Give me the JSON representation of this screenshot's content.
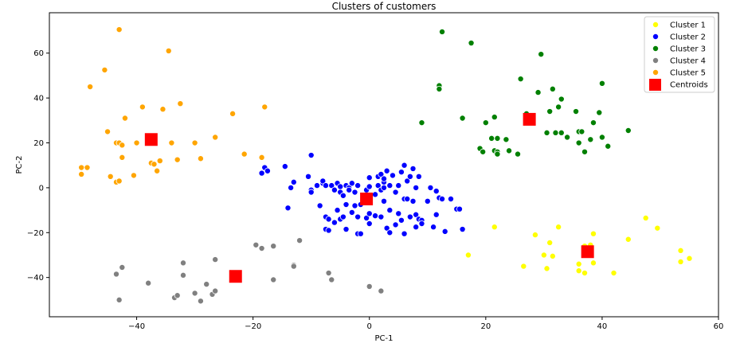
{
  "chart_data": {
    "type": "scatter",
    "title": "Clusters of customers",
    "xlabel": "PC-1",
    "ylabel": "PC-2",
    "xlim": [
      -55,
      60
    ],
    "ylim": [
      -57.5,
      78
    ],
    "x_ticks": [
      -40,
      -20,
      0,
      20,
      40,
      60
    ],
    "y_ticks": [
      -40,
      -20,
      0,
      20,
      40,
      60
    ],
    "x_tick_labels": [
      "−40",
      "−20",
      "0",
      "20",
      "40",
      "60"
    ],
    "y_tick_labels": [
      "−40",
      "−20",
      "0",
      "20",
      "40",
      "60"
    ],
    "grid": false,
    "legend_position": "top-right",
    "series": [
      {
        "name": "Cluster 1",
        "color": "#ffff00",
        "points": [
          [
            17,
            -30
          ],
          [
            21.5,
            -17.5
          ],
          [
            26.5,
            -35
          ],
          [
            28.5,
            -21
          ],
          [
            30,
            -30
          ],
          [
            30.5,
            -36
          ],
          [
            31,
            -24.5
          ],
          [
            31.5,
            -30.5
          ],
          [
            32.5,
            -17.5
          ],
          [
            36,
            -34
          ],
          [
            36,
            -37
          ],
          [
            37,
            -38
          ],
          [
            37,
            -26
          ],
          [
            38,
            -25.5
          ],
          [
            38.5,
            -20.5
          ],
          [
            38.5,
            -33.5
          ],
          [
            42,
            -38
          ],
          [
            44.5,
            -23
          ],
          [
            47.5,
            -13.5
          ],
          [
            49.5,
            -18
          ],
          [
            53.5,
            -28
          ],
          [
            53.5,
            -33
          ],
          [
            55,
            -31.5
          ]
        ]
      },
      {
        "name": "Cluster 2",
        "color": "#0000ff",
        "points": [
          [
            -18.5,
            6.5
          ],
          [
            -18,
            9
          ],
          [
            -17.5,
            7.5
          ],
          [
            -14.5,
            9.5
          ],
          [
            -14,
            -9
          ],
          [
            -13.5,
            0
          ],
          [
            -13,
            2.5
          ],
          [
            -10.5,
            5
          ],
          [
            -10,
            14.5
          ],
          [
            -10,
            -1
          ],
          [
            -10,
            -2
          ],
          [
            -9,
            1
          ],
          [
            -8.5,
            -8
          ],
          [
            -8,
            2
          ],
          [
            -8,
            3
          ],
          [
            -7.5,
            1
          ],
          [
            -7.5,
            -13
          ],
          [
            -7.5,
            -18.5
          ],
          [
            -7,
            -14
          ],
          [
            -7,
            -19
          ],
          [
            -6.5,
            1
          ],
          [
            -6,
            -1
          ],
          [
            -6,
            -15.5
          ],
          [
            -5.5,
            2
          ],
          [
            -5.5,
            -10
          ],
          [
            -5,
            0.5
          ],
          [
            -5,
            -14
          ],
          [
            -5,
            -2
          ],
          [
            -4.5,
            -3.5
          ],
          [
            -4.5,
            -13
          ],
          [
            -4,
            -18.5
          ],
          [
            -4,
            1
          ],
          [
            -4,
            -7.5
          ],
          [
            -3.5,
            0
          ],
          [
            -3.5,
            -1
          ],
          [
            -3,
            2
          ],
          [
            -3,
            -11
          ],
          [
            -2.5,
            -2
          ],
          [
            -2.5,
            -8
          ],
          [
            -2,
            1
          ],
          [
            -2,
            -13
          ],
          [
            -2,
            -20.5
          ],
          [
            -1.5,
            -20.5
          ],
          [
            -1.5,
            -7.5
          ],
          [
            -1,
            -4
          ],
          [
            -0.5,
            -13.5
          ],
          [
            -0.5,
            -1
          ],
          [
            0,
            0.5
          ],
          [
            0,
            4.5
          ],
          [
            0,
            -11.5
          ],
          [
            0,
            -16
          ],
          [
            1,
            -3
          ],
          [
            1,
            -12.5
          ],
          [
            1.5,
            1
          ],
          [
            1.5,
            5
          ],
          [
            2,
            -1
          ],
          [
            2,
            -13
          ],
          [
            2,
            6
          ],
          [
            2.5,
            2.5
          ],
          [
            2.5,
            0
          ],
          [
            2.5,
            -6
          ],
          [
            2.5,
            4
          ],
          [
            3,
            7.5
          ],
          [
            3,
            -18
          ],
          [
            3.5,
            -10
          ],
          [
            3.5,
            1
          ],
          [
            3.5,
            -20
          ],
          [
            4,
            5.5
          ],
          [
            4.5,
            -2
          ],
          [
            4.5,
            -16.5
          ],
          [
            5,
            -11.5
          ],
          [
            5,
            1
          ],
          [
            5.5,
            7
          ],
          [
            5.5,
            -14.5
          ],
          [
            6,
            -20.5
          ],
          [
            6,
            10
          ],
          [
            6,
            -5
          ],
          [
            6.5,
            3
          ],
          [
            6.5,
            -5
          ],
          [
            7,
            5
          ],
          [
            7,
            -13
          ],
          [
            7.5,
            -6
          ],
          [
            7.5,
            8.5
          ],
          [
            8,
            -17.5
          ],
          [
            8,
            0
          ],
          [
            8,
            -12
          ],
          [
            8.5,
            5
          ],
          [
            8.5,
            -14
          ],
          [
            9,
            -14.5
          ],
          [
            9,
            -16
          ],
          [
            10,
            -6
          ],
          [
            10.5,
            0
          ],
          [
            11,
            -17.5
          ],
          [
            11.5,
            -1.5
          ],
          [
            11.5,
            -12
          ],
          [
            12,
            -4.5
          ],
          [
            12.5,
            -5
          ],
          [
            13,
            -19.5
          ],
          [
            14,
            -5
          ],
          [
            15,
            -9.5
          ],
          [
            15.5,
            -9.5
          ],
          [
            16,
            -18.5
          ]
        ]
      },
      {
        "name": "Cluster 3",
        "color": "#008000",
        "points": [
          [
            9,
            29
          ],
          [
            12,
            45.5
          ],
          [
            12,
            44
          ],
          [
            12.5,
            69.5
          ],
          [
            17.5,
            64.5
          ],
          [
            16,
            31
          ],
          [
            19,
            17.5
          ],
          [
            19.5,
            16
          ],
          [
            20,
            29
          ],
          [
            21,
            22
          ],
          [
            21.5,
            16.5
          ],
          [
            21.5,
            31.5
          ],
          [
            22,
            22
          ],
          [
            22,
            16
          ],
          [
            22,
            15
          ],
          [
            23.5,
            21.5
          ],
          [
            24,
            16.5
          ],
          [
            25.5,
            15
          ],
          [
            26,
            48.5
          ],
          [
            27,
            33
          ],
          [
            29,
            42.5
          ],
          [
            29.5,
            59.5
          ],
          [
            30.5,
            24.5
          ],
          [
            31,
            34
          ],
          [
            31.5,
            44
          ],
          [
            32,
            24.5
          ],
          [
            32.5,
            36
          ],
          [
            33,
            39.5
          ],
          [
            33,
            24.5
          ],
          [
            34,
            22.5
          ],
          [
            35.5,
            34
          ],
          [
            36,
            20
          ],
          [
            36,
            25
          ],
          [
            36.5,
            25
          ],
          [
            37,
            16
          ],
          [
            38,
            21.5
          ],
          [
            38.5,
            29
          ],
          [
            39.5,
            33.5
          ],
          [
            40,
            46.5
          ],
          [
            40,
            22.5
          ],
          [
            41,
            18.5
          ],
          [
            44.5,
            25.5
          ]
        ]
      },
      {
        "name": "Cluster 4",
        "color": "#808080",
        "points": [
          [
            -43.5,
            -38.5
          ],
          [
            -43,
            -50
          ],
          [
            -42.5,
            -35.5
          ],
          [
            -38,
            -42.5
          ],
          [
            -33.5,
            -49
          ],
          [
            -33,
            -48
          ],
          [
            -32,
            -39
          ],
          [
            -32,
            -33.5
          ],
          [
            -30,
            -47
          ],
          [
            -29,
            -50.5
          ],
          [
            -28,
            -43
          ],
          [
            -27,
            -47.5
          ],
          [
            -26.5,
            -46
          ],
          [
            -26.5,
            -32
          ],
          [
            -19.5,
            -25.5
          ],
          [
            -18.5,
            -27
          ],
          [
            -16.5,
            -41
          ],
          [
            -16.5,
            -26
          ],
          [
            -13,
            -34.5
          ],
          [
            -13,
            -35
          ],
          [
            -12,
            -23.5
          ],
          [
            -7,
            -38
          ],
          [
            -6.5,
            -41
          ],
          [
            0,
            -44
          ],
          [
            2,
            -46
          ]
        ]
      },
      {
        "name": "Cluster 5",
        "color": "#ffa500",
        "points": [
          [
            -49.5,
            9
          ],
          [
            -49.5,
            6
          ],
          [
            -48.5,
            9
          ],
          [
            -48,
            45
          ],
          [
            -45.5,
            52.5
          ],
          [
            -45,
            25
          ],
          [
            -44.5,
            5
          ],
          [
            -43.5,
            2.5
          ],
          [
            -43.5,
            20
          ],
          [
            -43,
            70.5
          ],
          [
            -43,
            20
          ],
          [
            -43,
            3
          ],
          [
            -42.5,
            19
          ],
          [
            -42.5,
            13.5
          ],
          [
            -42,
            31
          ],
          [
            -40.5,
            5.5
          ],
          [
            -40,
            20
          ],
          [
            -39,
            36
          ],
          [
            -37.5,
            11
          ],
          [
            -37,
            10.5
          ],
          [
            -36.5,
            7.5
          ],
          [
            -36,
            12
          ],
          [
            -35.5,
            35
          ],
          [
            -34.5,
            61
          ],
          [
            -34,
            20
          ],
          [
            -33,
            12.5
          ],
          [
            -32.5,
            37.5
          ],
          [
            -30,
            20
          ],
          [
            -29,
            13
          ],
          [
            -26.5,
            22.5
          ],
          [
            -23.5,
            33
          ],
          [
            -21.5,
            15
          ],
          [
            -18.5,
            13.5
          ],
          [
            -18,
            36
          ]
        ]
      },
      {
        "name": "Centroids",
        "color": "#ff0000",
        "marker": "square",
        "points": [
          [
            -37.5,
            21.5
          ],
          [
            -23,
            -39.5
          ],
          [
            -0.5,
            -5
          ],
          [
            27.5,
            30.5
          ],
          [
            37.5,
            -28.5
          ]
        ]
      }
    ]
  }
}
